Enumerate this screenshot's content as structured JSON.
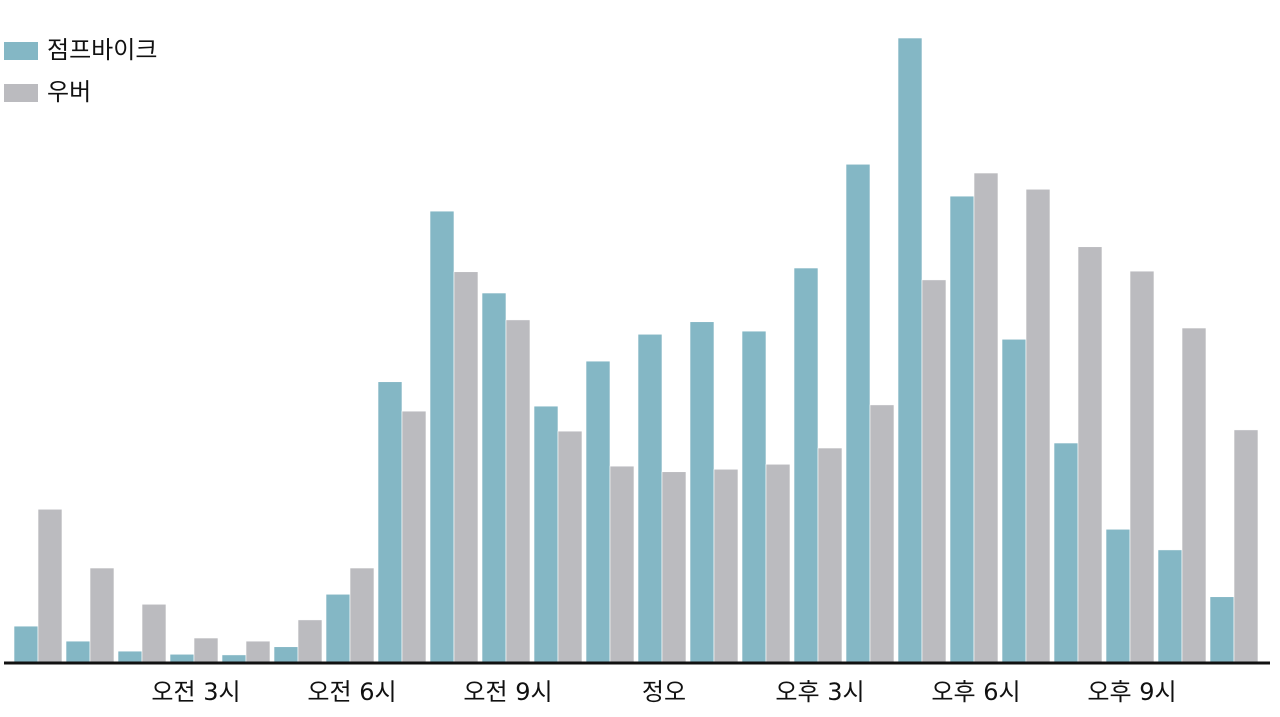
{
  "chart_data": {
    "type": "bar",
    "categories": [
      null,
      null,
      null,
      "오전 3시",
      null,
      null,
      "오전 6시",
      null,
      null,
      "오전 9시",
      null,
      null,
      "정오",
      null,
      null,
      "오후 3시",
      null,
      null,
      "오후 6시",
      null,
      null,
      "오후 9시",
      null,
      null
    ],
    "series": [
      {
        "name": "점프바이크",
        "color": "#84b7c5",
        "values": [
          5.9,
          3.5,
          1.9,
          1.4,
          1.3,
          2.6,
          11,
          45,
          72.3,
          59.2,
          41.1,
          48.3,
          52.6,
          54.6,
          53.1,
          63.2,
          79.8,
          100,
          74.7,
          51.8,
          35.2,
          21.4,
          18.1,
          10.6
        ]
      },
      {
        "name": "우버",
        "color": "#bbbbbf",
        "values": [
          24.6,
          15.2,
          9.4,
          4,
          3.5,
          6.9,
          15.2,
          40.3,
          62.6,
          54.9,
          37.1,
          31.5,
          30.6,
          31,
          31.8,
          34.4,
          41.3,
          61.3,
          78.4,
          75.8,
          66.6,
          62.7,
          53.6,
          37.3
        ]
      }
    ],
    "ylim": [
      0,
      100
    ],
    "legend": "top-left"
  }
}
